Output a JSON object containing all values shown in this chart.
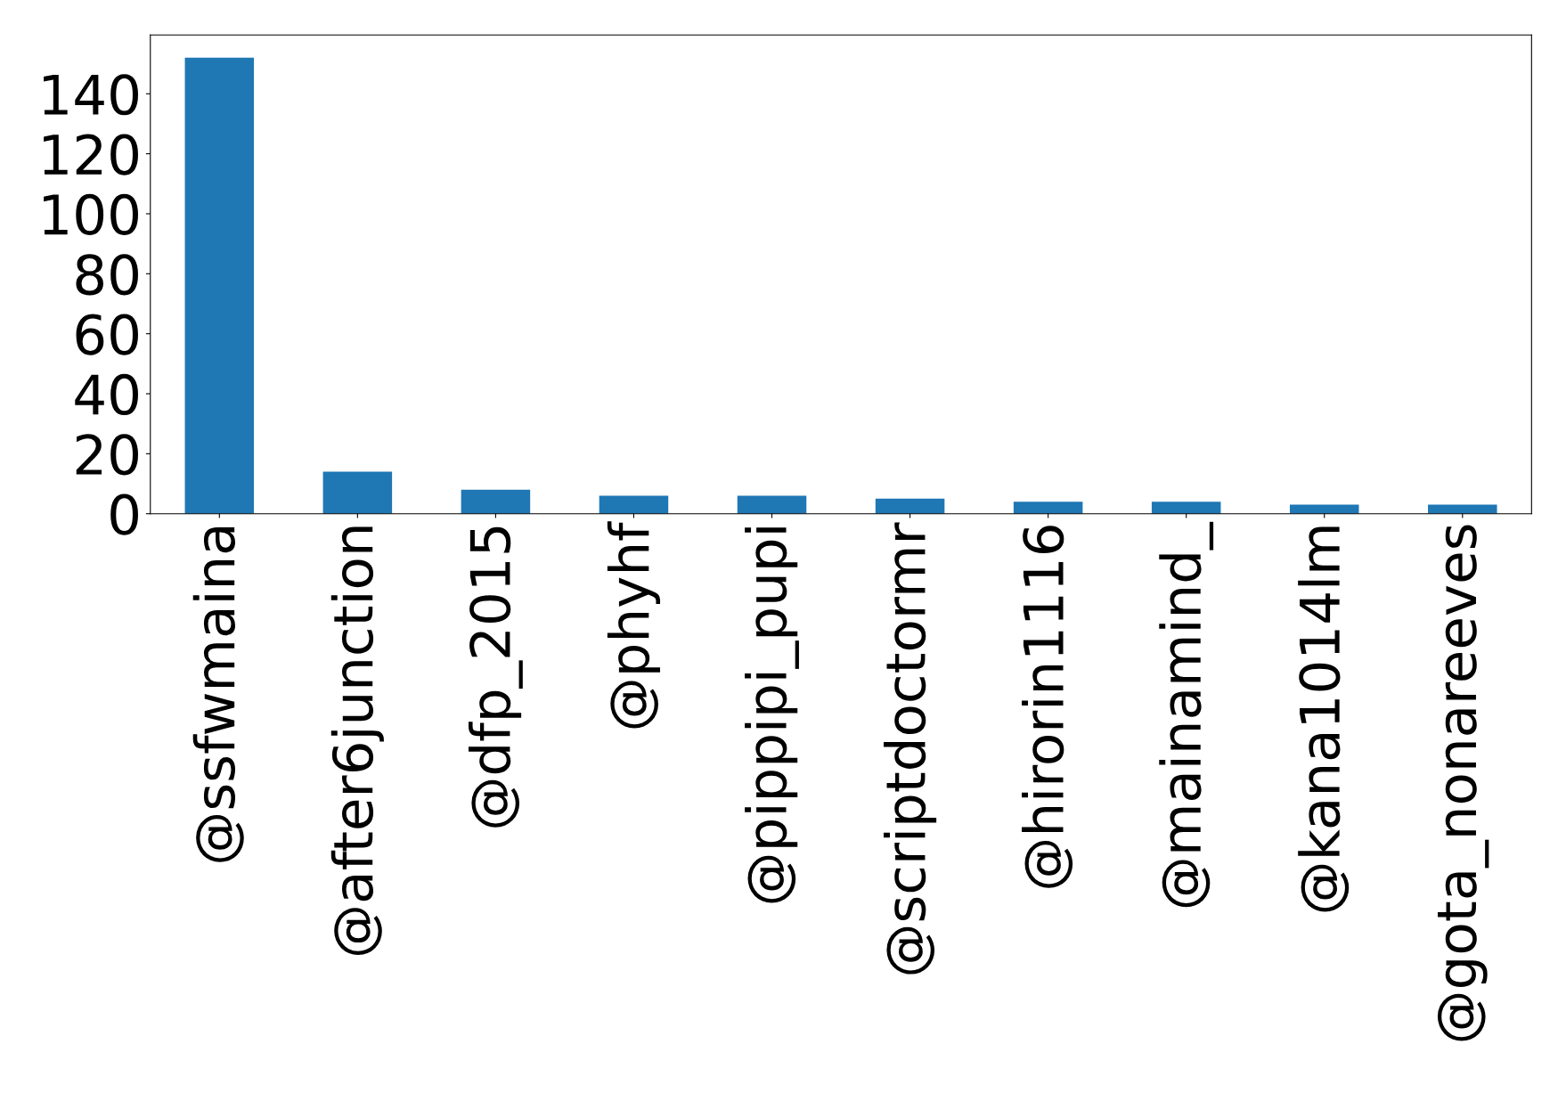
{
  "chart_data": {
    "type": "bar",
    "categories": [
      "@ssfwmaina",
      "@after6junction",
      "@dfp_2015",
      "@phyhf",
      "@pippipi_pupi",
      "@scriptdoctormr",
      "@hirorin1116",
      "@mainamind_",
      "@kana1014lm",
      "@gota_nonareeves"
    ],
    "values": [
      152,
      14,
      8,
      6,
      6,
      5,
      4,
      4,
      3,
      3
    ],
    "color": "#1f77b4",
    "ylim": [
      0,
      159.6
    ],
    "yticks": [
      0,
      20,
      40,
      60,
      80,
      100,
      120,
      140
    ],
    "grid": false,
    "legend": false
  }
}
